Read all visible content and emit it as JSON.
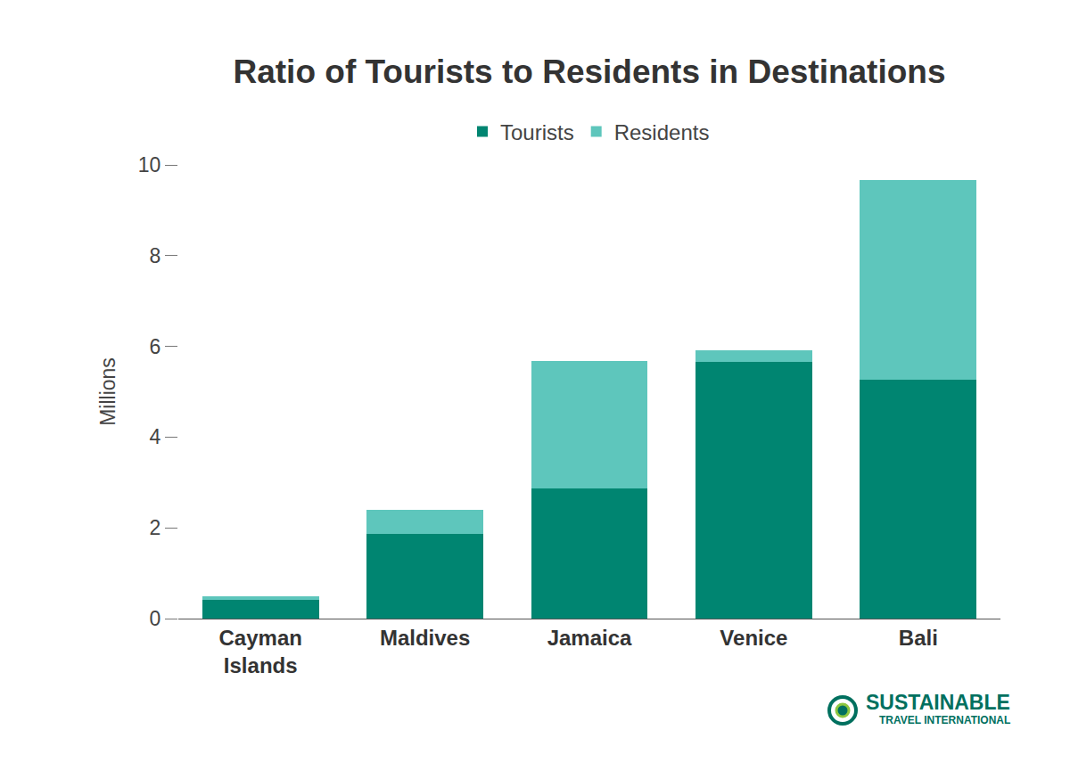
{
  "chart_data": {
    "type": "bar",
    "title": "Ratio of Tourists to Residents in Destinations",
    "ylabel": "Millions",
    "categories": [
      "Cayman Islands",
      "Maldives",
      "Jamaica",
      "Venice",
      "Bali"
    ],
    "series": [
      {
        "name": "Tourists",
        "color": "#008571",
        "values": [
          0.42,
          1.87,
          2.87,
          5.66,
          5.27
        ]
      },
      {
        "name": "Residents",
        "color": "#5ec6bc",
        "values": [
          0.07,
          0.53,
          2.81,
          0.26,
          4.4
        ]
      }
    ],
    "ylim": [
      0,
      10
    ],
    "yticks": [
      0,
      2,
      4,
      6,
      8,
      10
    ],
    "stacked": true,
    "grid": false,
    "legend": "top",
    "annotations": [
      "SUSTAINABLE",
      "TRAVEL INTERNATIONAL"
    ]
  }
}
